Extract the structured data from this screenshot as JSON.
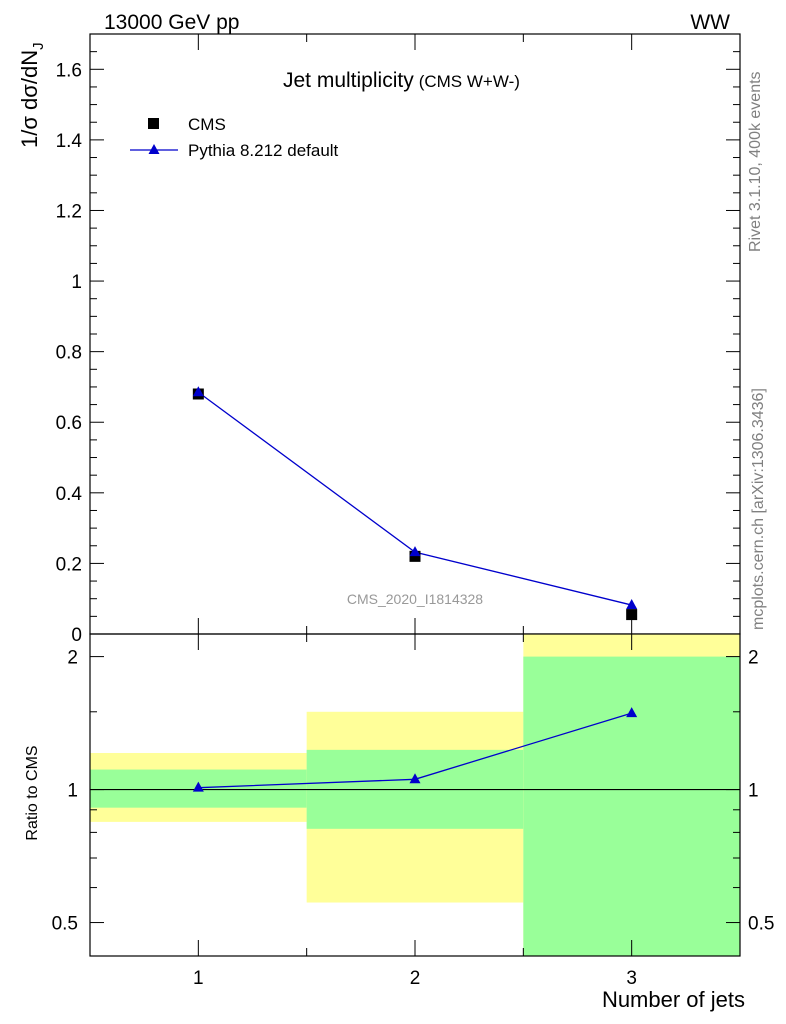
{
  "header": {
    "left": "13000 GeV pp",
    "right": "WW"
  },
  "side_labels": {
    "rivet": "Rivet 3.1.10,  400k events",
    "mcplots": "mcplots.cern.ch [arXiv:1306.3436]"
  },
  "colors": {
    "data": "#000000",
    "mc": "#0000cc",
    "band_inner": "#99ff99",
    "band_outer": "#ffff99"
  },
  "chart_data": {
    "type": "line",
    "title": "Jet multiplicity",
    "subtitle": "(CMS W+W-)",
    "xlabel": "Number of jets",
    "ylabel": "1/σ dσ/dN",
    "ylabel_sub": "J",
    "analysis_id": "CMS_2020_I1814328",
    "xlim": [
      0.5,
      3.5
    ],
    "x_ticks": [
      1,
      2,
      3
    ],
    "main": {
      "ylim": [
        0,
        1.7
      ],
      "y_ticks": [
        0,
        0.2,
        0.4,
        0.6,
        0.8,
        1,
        1.2,
        1.4,
        1.6
      ],
      "y_tick_labels": [
        "0",
        "0.2",
        "0.4",
        "0.6",
        "0.8",
        "1",
        "1.2",
        "1.4",
        "1.6"
      ],
      "legend_position": "top-left",
      "series": [
        {
          "name": "CMS",
          "marker": "square",
          "x": [
            1,
            2,
            3
          ],
          "values": [
            0.68,
            0.22,
            0.055
          ]
        },
        {
          "name": "Pythia 8.212 default",
          "marker": "triangle",
          "x": [
            1,
            2,
            3
          ],
          "values": [
            0.685,
            0.232,
            0.082
          ]
        }
      ]
    },
    "ratio": {
      "ylabel": "Ratio to CMS",
      "scale": "log",
      "ylim": [
        0.42,
        2.25
      ],
      "y_ticks": [
        0.5,
        1,
        2
      ],
      "y_tick_labels": [
        "0.5",
        "1",
        "2"
      ],
      "reference": 1,
      "series": [
        {
          "name": "Pythia 8.212 default",
          "x": [
            1,
            2,
            3
          ],
          "values": [
            1.01,
            1.055,
            1.49
          ]
        }
      ],
      "bands": [
        {
          "x_lo": 0.5,
          "x_hi": 1.5,
          "inner": [
            0.91,
            1.11
          ],
          "outer": [
            0.845,
            1.21
          ]
        },
        {
          "x_lo": 1.5,
          "x_hi": 2.5,
          "inner": [
            0.815,
            1.23
          ],
          "outer": [
            0.555,
            1.5
          ]
        },
        {
          "x_lo": 2.5,
          "x_hi": 3.5,
          "inner": [
            0.42,
            2.0
          ],
          "outer": [
            0.42,
            2.25
          ]
        }
      ]
    }
  }
}
